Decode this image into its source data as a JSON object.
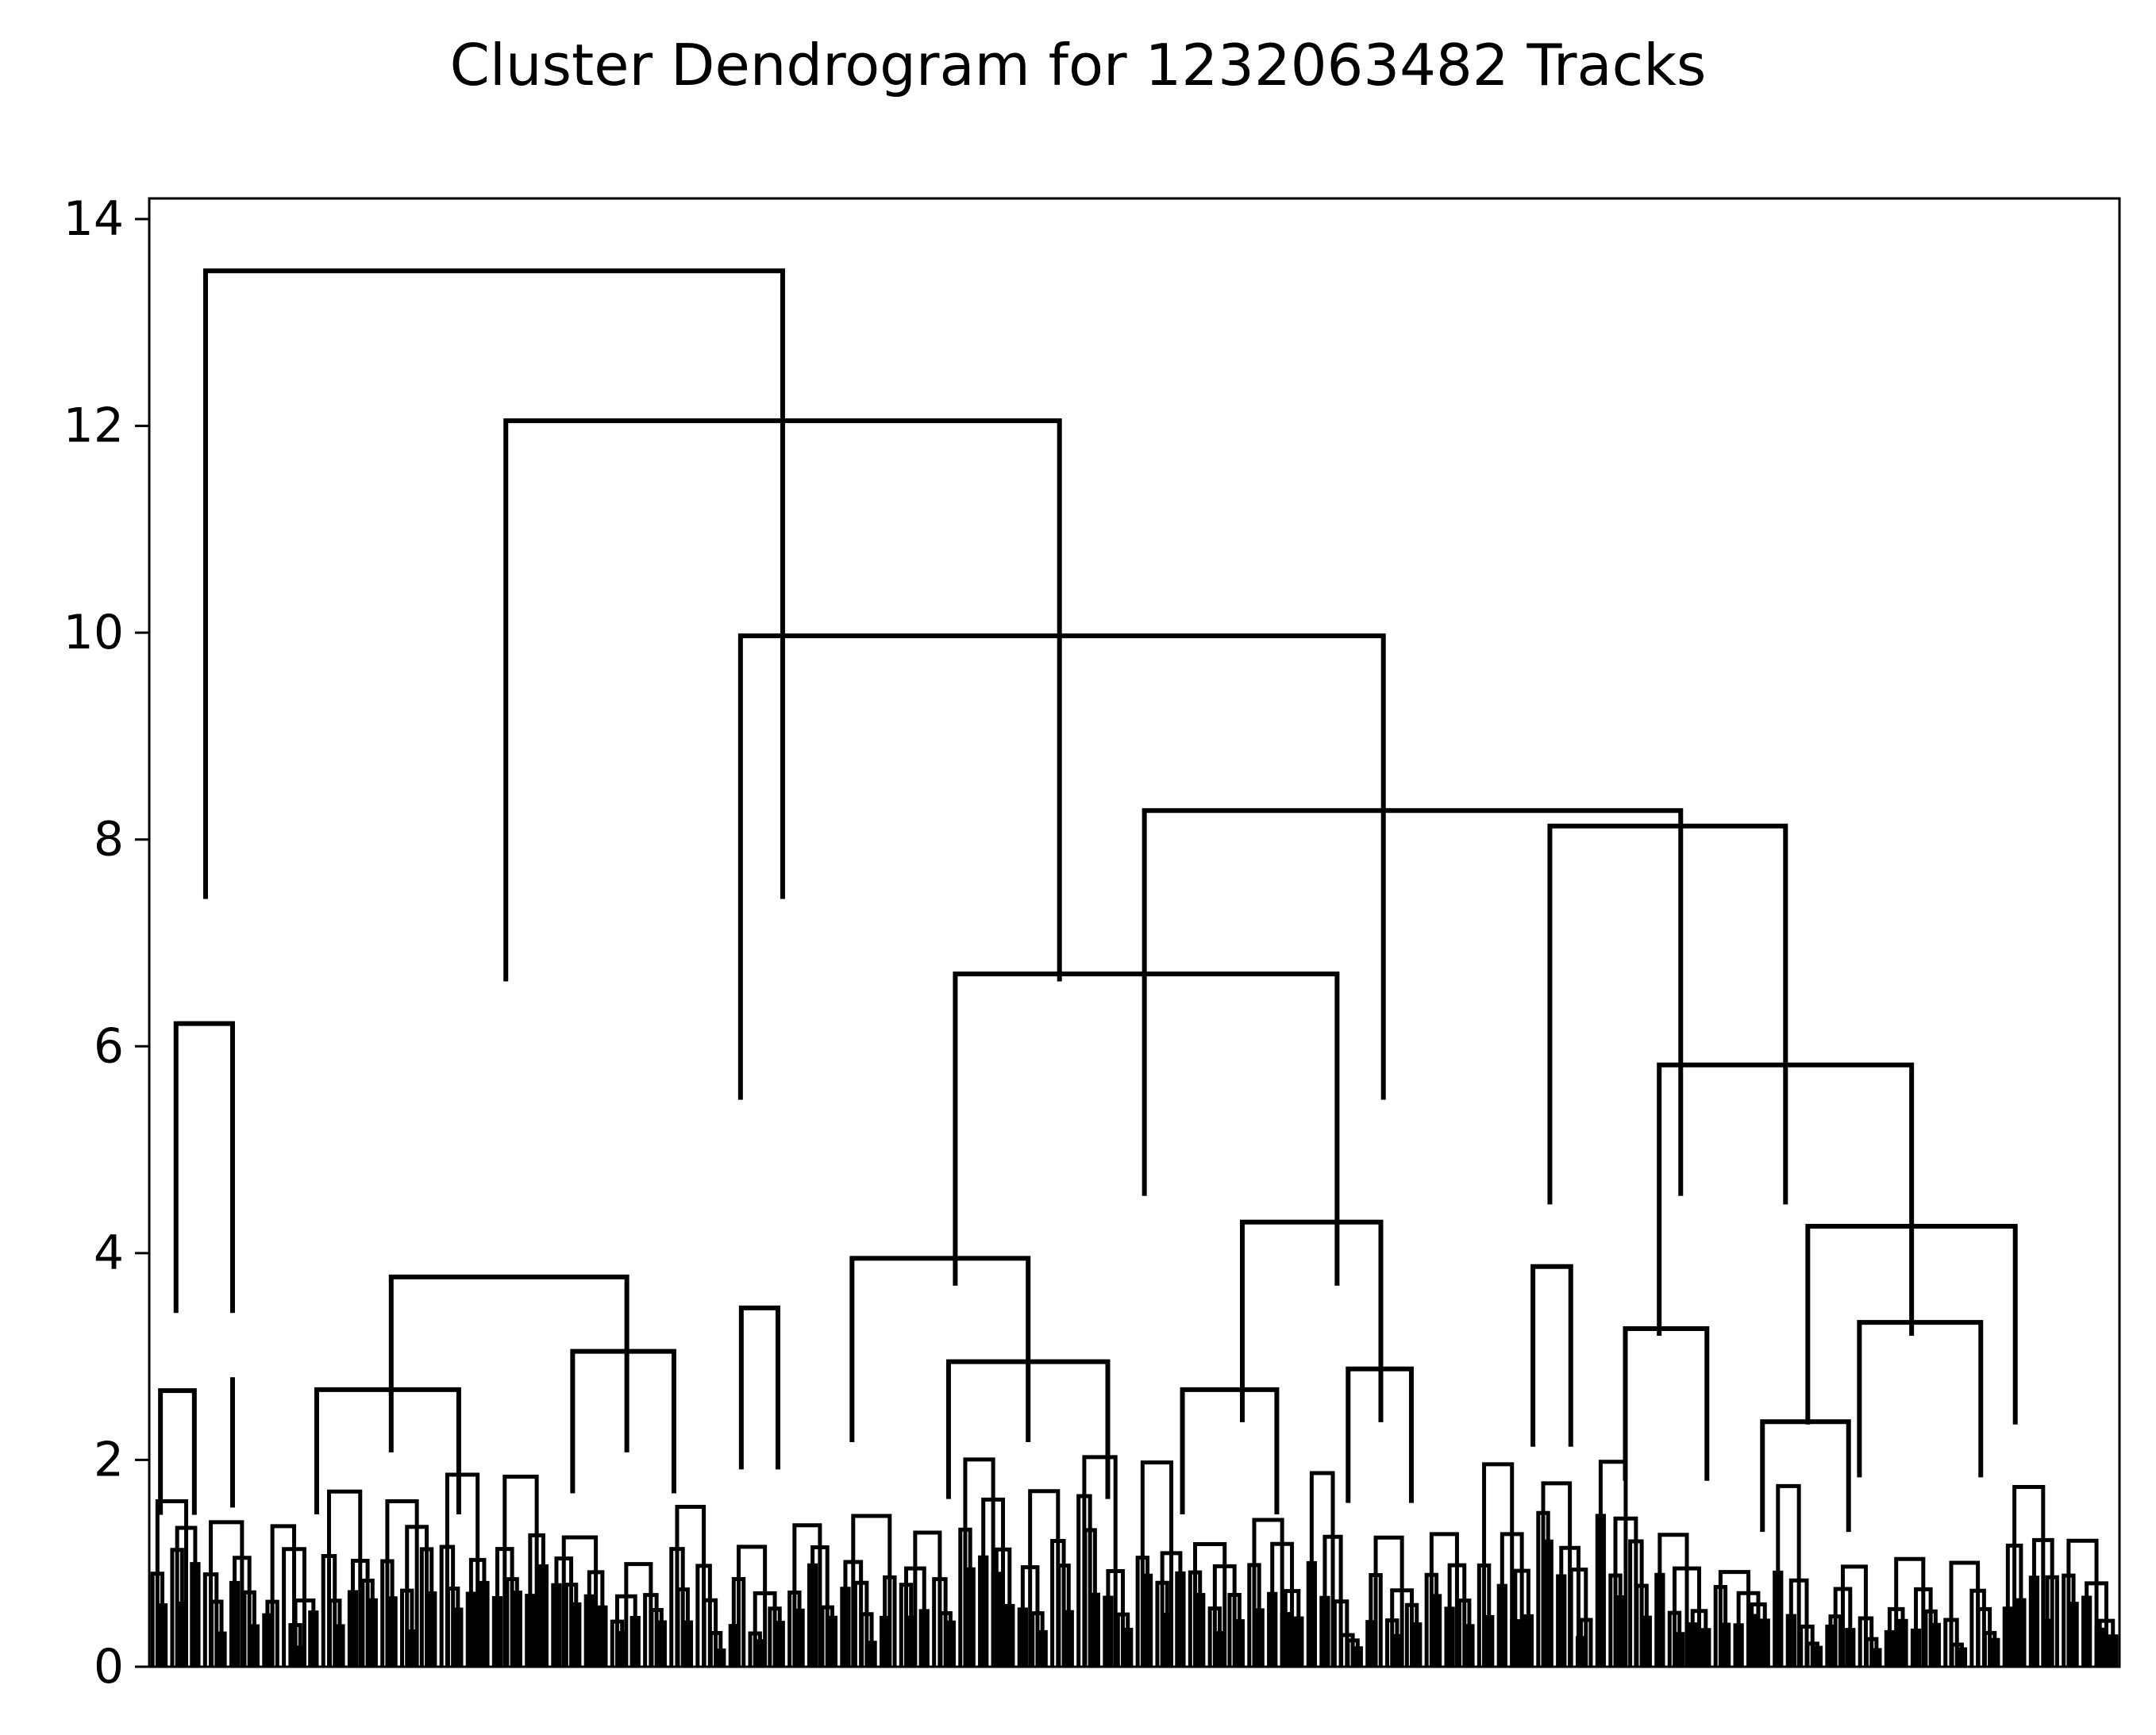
{
  "chart_data": {
    "type": "dendrogram",
    "title": "Cluster Dendrogram for 1232063482 Tracks",
    "xlabel": "",
    "ylabel": "",
    "ylim": [
      0,
      14.2
    ],
    "yticks": [
      0,
      2,
      4,
      6,
      8,
      10,
      12,
      14
    ],
    "xticks": [],
    "grid": false,
    "line_color": "#000000",
    "leaf_count": 300,
    "merges": [
      {
        "x": [
          0.0286,
          0.3215
        ],
        "height": 13.5
      },
      {
        "x": [
          0.181,
          0.462
        ],
        "height": 12.05
      },
      {
        "x": [
          0.3001,
          0.6264
        ],
        "height": 9.97
      },
      {
        "x": [
          0.5051,
          0.7773
        ],
        "height": 8.28
      },
      {
        "x": [
          0.4091,
          0.6029
        ],
        "height": 6.7
      },
      {
        "x": [
          0.7109,
          0.8305
        ],
        "height": 8.13
      },
      {
        "x": [
          0.7664,
          0.8945
        ],
        "height": 5.82
      },
      {
        "x": [
          0.8418,
          0.9471
        ],
        "height": 4.26
      },
      {
        "x": [
          0.0136,
          0.0423
        ],
        "height": 6.22
      },
      {
        "x": [
          0.1228,
          0.2424
        ],
        "height": 3.77
      },
      {
        "x": [
          0.085,
          0.1571
        ],
        "height": 2.68
      },
      {
        "x": [
          0.2149,
          0.2663
        ],
        "height": 3.05
      },
      {
        "x": [
          0.3567,
          0.4461
        ],
        "height": 3.95
      },
      {
        "x": [
          0.4057,
          0.4865
        ],
        "height": 2.95
      },
      {
        "x": [
          0.5548,
          0.6251
        ],
        "height": 4.3
      },
      {
        "x": [
          0.5244,
          0.5723
        ],
        "height": 2.68
      },
      {
        "x": [
          0.6085,
          0.6406
        ],
        "height": 2.88
      },
      {
        "x": [
          0.7023,
          0.7215
        ],
        "height": 3.87
      },
      {
        "x": [
          0.7492,
          0.7906
        ],
        "height": 3.27
      },
      {
        "x": [
          0.868,
          0.9296
        ],
        "height": 3.33
      },
      {
        "x": [
          0.8188,
          0.8625
        ],
        "height": 2.37
      },
      {
        "x": [
          0.3005,
          0.3191
        ],
        "height": 3.47
      },
      {
        "x": [
          0.0057,
          0.0229
        ],
        "height": 2.67
      },
      {
        "x": [
          0.0423,
          0.0423
        ],
        "height": 2.8
      }
    ]
  }
}
